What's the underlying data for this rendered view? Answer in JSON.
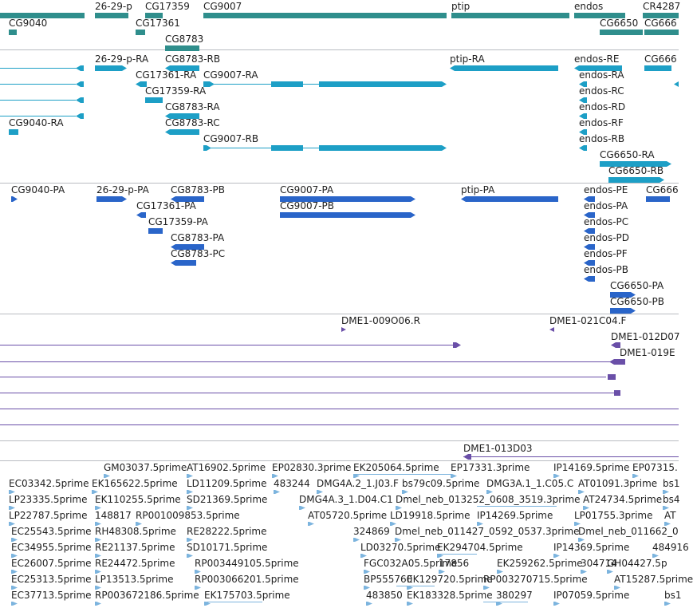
{
  "colors": {
    "gene": "#2f8e8c",
    "transcript": "#1d9fc6",
    "protein": "#2a65c9",
    "cdna": "#6a4fa8",
    "est": "#7cb4de",
    "separator": "#b9bcc2"
  },
  "tracks": {
    "genes": {
      "features": [
        {
          "label": "CG9040"
        },
        {
          "label": "26-29-p"
        },
        {
          "label": "CG17359"
        },
        {
          "label": "CG9007"
        },
        {
          "label": "ptip"
        },
        {
          "label": "endos"
        },
        {
          "label": "CR4287"
        },
        {
          "label": "CG17361"
        },
        {
          "label": "CG6650"
        },
        {
          "label": "CG666"
        },
        {
          "label": "CG8783"
        }
      ]
    },
    "transcripts": {
      "features": [
        {
          "label": "26-29-p-RA"
        },
        {
          "label": "CG8783-RB"
        },
        {
          "label": "ptip-RA"
        },
        {
          "label": "endos-RE"
        },
        {
          "label": "CG666"
        },
        {
          "label": "CG17361-RA"
        },
        {
          "label": "CG9007-RA"
        },
        {
          "label": "endos-RA"
        },
        {
          "label": "CG17359-RA"
        },
        {
          "label": "endos-RC"
        },
        {
          "label": "CG8783-RA"
        },
        {
          "label": "endos-RD"
        },
        {
          "label": "CG9040-RA"
        },
        {
          "label": "CG8783-RC"
        },
        {
          "label": "endos-RF"
        },
        {
          "label": "CG9007-RB"
        },
        {
          "label": "endos-RB"
        },
        {
          "label": "CG6650-RA"
        },
        {
          "label": "CG6650-RB"
        }
      ]
    },
    "proteins": {
      "features": [
        {
          "label": "CG9040-PA"
        },
        {
          "label": "26-29-p-PA"
        },
        {
          "label": "CG8783-PB"
        },
        {
          "label": "CG9007-PA"
        },
        {
          "label": "ptip-PA"
        },
        {
          "label": "endos-PE"
        },
        {
          "label": "CG666"
        },
        {
          "label": "CG9007-PB"
        },
        {
          "label": "CG17361-PA"
        },
        {
          "label": "endos-PA"
        },
        {
          "label": "CG17359-PA"
        },
        {
          "label": "endos-PC"
        },
        {
          "label": "CG8783-PA"
        },
        {
          "label": "endos-PD"
        },
        {
          "label": "CG8783-PC"
        },
        {
          "label": "endos-PF"
        },
        {
          "label": "endos-PB"
        },
        {
          "label": "CG6650-PA"
        },
        {
          "label": "CG6650-PB"
        }
      ]
    },
    "cdna": {
      "features": [
        {
          "label": "DME1-009O06.R"
        },
        {
          "label": "DME1-021C04.F"
        },
        {
          "label": "DME1-012D07"
        },
        {
          "label": "DME1-019E"
        },
        {
          "label": "DME1-013D03"
        }
      ]
    },
    "ests": {
      "features": [
        {
          "label": "GM03037.5prime"
        },
        {
          "label": "AT16902.5prime"
        },
        {
          "label": "EP02830.3prime"
        },
        {
          "label": "EK205064.5prime"
        },
        {
          "label": "EP17331.3prime"
        },
        {
          "label": "IP14169.5prime"
        },
        {
          "label": "EP07315."
        },
        {
          "label": "EC03342.5prime"
        },
        {
          "label": "EK165622.5prime"
        },
        {
          "label": "LD11209.5prime"
        },
        {
          "label": "483244"
        },
        {
          "label": "DMG4A.2_1.J03.F"
        },
        {
          "label": "bs79c09.5prime"
        },
        {
          "label": "DMG3A.1_1.C05.C"
        },
        {
          "label": "AT01091.3prime"
        },
        {
          "label": "bs1"
        },
        {
          "label": "LP23335.5prime"
        },
        {
          "label": "EK110255.5prime"
        },
        {
          "label": "SD21369.5prime"
        },
        {
          "label": "DMG4A.3_1.D04.C1"
        },
        {
          "label": "Dmel_neb_013252_0608_3519.3prime"
        },
        {
          "label": "AT24734.5prime"
        },
        {
          "label": "bs4"
        },
        {
          "label": "LP22787.5prime"
        },
        {
          "label": "148817"
        },
        {
          "label": "RP001009853.5prime"
        },
        {
          "label": "AT05720.5prime"
        },
        {
          "label": "LD19918.5prime"
        },
        {
          "label": "IP14269.5prime"
        },
        {
          "label": "LP01755.3prime"
        },
        {
          "label": "AT"
        },
        {
          "label": "EC25543.5prime"
        },
        {
          "label": "RH48308.5prime"
        },
        {
          "label": "RE28222.5prime"
        },
        {
          "label": "324869"
        },
        {
          "label": "Dmel_neb_011427_0592_0537.3prime"
        },
        {
          "label": "Dmel_neb_011662_0"
        },
        {
          "label": "EC34955.5prime"
        },
        {
          "label": "RE21137.5prime"
        },
        {
          "label": "SD10171.5prime"
        },
        {
          "label": "LD03270.5prime"
        },
        {
          "label": "EK294704.5prime"
        },
        {
          "label": "IP14369.5prime"
        },
        {
          "label": "484916"
        },
        {
          "label": "EC26007.5prime"
        },
        {
          "label": "RE24472.5prime"
        },
        {
          "label": "RP003449105.5prime"
        },
        {
          "label": "FGC032A05.5prime"
        },
        {
          "label": "17856"
        },
        {
          "label": "EK259262.5prime"
        },
        {
          "label": "304714"
        },
        {
          "label": "GH04427.5p"
        },
        {
          "label": "EC25313.5prime"
        },
        {
          "label": "LP13513.5prime"
        },
        {
          "label": "RP003066201.5prime"
        },
        {
          "label": "BP555760"
        },
        {
          "label": "EK129720.5prime"
        },
        {
          "label": "RP003270715.5prime"
        },
        {
          "label": "AT15287.5prime"
        },
        {
          "label": "EC37713.5prime"
        },
        {
          "label": "RP003672186.5prime"
        },
        {
          "label": "EK175703.5prime"
        },
        {
          "label": "483850"
        },
        {
          "label": "EK183328.5prime"
        },
        {
          "label": "380297"
        },
        {
          "label": "IP07059.5prime"
        },
        {
          "label": "bs1"
        }
      ]
    }
  }
}
